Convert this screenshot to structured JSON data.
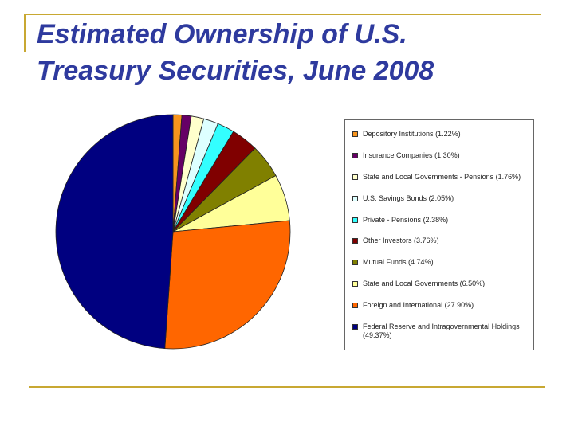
{
  "chart_data": {
    "type": "pie",
    "title": "Estimated Ownership of U.S.\nTreasury Securities, June 2008",
    "categories": [
      "Depository Institutions",
      "Insurance Companies",
      "State and Local Governments - Pensions",
      "U.S. Savings Bonds",
      "Private - Pensions",
      "Other Investors",
      "Mutual Funds",
      "State and Local Governments",
      "Foreign and International",
      "Federal Reserve and Intragovernmental Holdings"
    ],
    "values": [
      1.22,
      1.3,
      1.76,
      2.05,
      2.38,
      3.76,
      4.74,
      6.5,
      27.9,
      49.37
    ],
    "value_labels": [
      "(1.22%)",
      "(1.30%)",
      "(1.76%)",
      "(2.05%)",
      "(2.38%)",
      "(3.76%)",
      "(4.74%)",
      "(6.50%)",
      "(27.90%)",
      "(49.37%)"
    ],
    "colors": [
      "#f7941d",
      "#660066",
      "#ffffcc",
      "#ddffff",
      "#33ffff",
      "#800000",
      "#808000",
      "#ffff99",
      "#ff6600",
      "#000080"
    ]
  }
}
